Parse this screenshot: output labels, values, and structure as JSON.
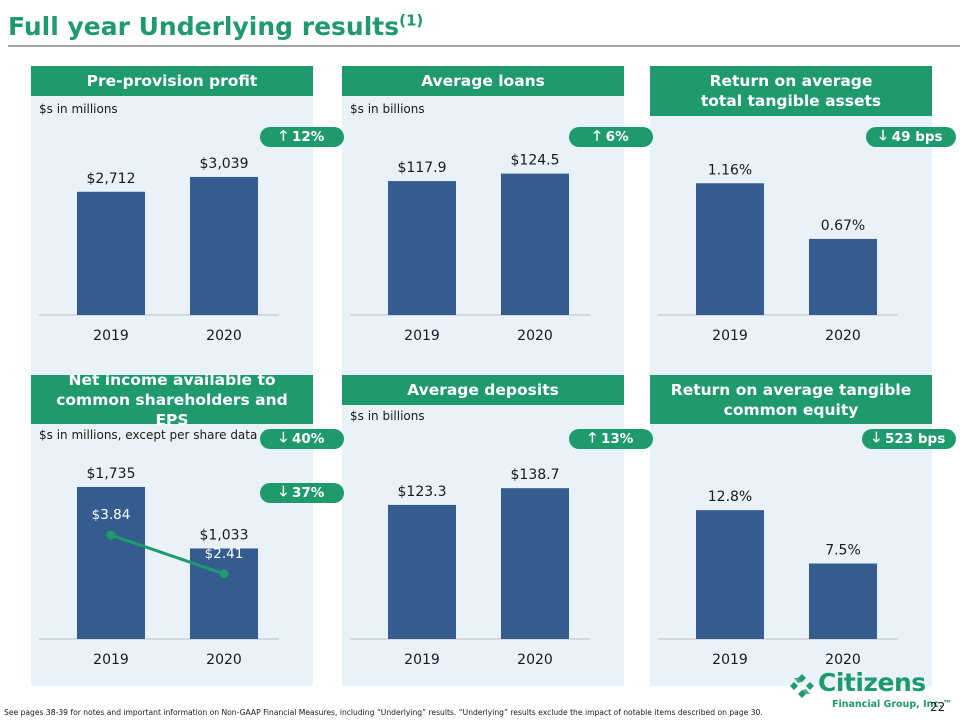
{
  "slide": {
    "title": "Full year Underlying results",
    "title_superscript": "(1)",
    "footnote": "See pages 38-39 for notes and important information on Non-GAAP Financial Measures, including “Underlying” results. “Underlying” results exclude the impact of notable items described on page 30.",
    "page_number": "22"
  },
  "logo": {
    "name": "Citizens",
    "tagline": "Financial Group, Inc.™"
  },
  "colors": {
    "brand_green": "#1f9a6d",
    "bar_blue": "#345c8f",
    "panel_bg": "#e8f2f8"
  },
  "panels": [
    {
      "header_lines": [
        "Pre-provision profit"
      ],
      "subtitle": "$s in millions",
      "badges": [
        {
          "arrow": "up",
          "arrow_glyph": "🡑",
          "text": "12%"
        }
      ]
    },
    {
      "header_lines": [
        "Average loans"
      ],
      "subtitle": "$s in billions",
      "badges": [
        {
          "arrow": "up",
          "arrow_glyph": "🡑",
          "text": "6%"
        }
      ]
    },
    {
      "header_lines": [
        "Return on average",
        "total tangible assets"
      ],
      "subtitle": "",
      "badges": [
        {
          "arrow": "down",
          "arrow_glyph": "🡓",
          "text": "49 bps"
        }
      ]
    },
    {
      "header_lines": [
        "Net income available to",
        "common shareholders and EPS"
      ],
      "subtitle": "$s in millions, except per share data",
      "badges": [
        {
          "arrow": "down",
          "arrow_glyph": "🡓",
          "text": "40%"
        },
        {
          "arrow": "down",
          "arrow_glyph": "🡓",
          "text": "37%"
        }
      ]
    },
    {
      "header_lines": [
        "Average deposits"
      ],
      "subtitle": "$s in billions",
      "badges": [
        {
          "arrow": "up",
          "arrow_glyph": "🡑",
          "text": "13%"
        }
      ]
    },
    {
      "header_lines": [
        "Return on average tangible",
        "common equity"
      ],
      "subtitle": "",
      "badges": [
        {
          "arrow": "down",
          "arrow_glyph": "🡓",
          "text": "523 bps"
        }
      ]
    }
  ],
  "chart_data": [
    {
      "type": "bar",
      "title": "Pre-provision profit",
      "ylabel": "$s in millions",
      "categories": [
        "2019",
        "2020"
      ],
      "values": [
        2712,
        3039
      ],
      "data_labels": [
        "$2,712",
        "$3,039"
      ],
      "ylim": [
        0,
        3500
      ],
      "grid": false
    },
    {
      "type": "bar",
      "title": "Average loans",
      "ylabel": "$s in billions",
      "categories": [
        "2019",
        "2020"
      ],
      "values": [
        117.9,
        124.5
      ],
      "data_labels": [
        "$117.9",
        "$124.5"
      ],
      "ylim": [
        0,
        140
      ],
      "grid": false
    },
    {
      "type": "bar",
      "title": "Return on average total tangible assets",
      "categories": [
        "2019",
        "2020"
      ],
      "values": [
        1.16,
        0.67
      ],
      "data_labels": [
        "1.16%",
        "0.67%"
      ],
      "ylim": [
        0,
        1.4
      ],
      "grid": false
    },
    {
      "type": "bar",
      "title": "Net income available to common shareholders and EPS",
      "ylabel": "$s in millions, except per share data",
      "categories": [
        "2019",
        "2020"
      ],
      "values": [
        1735,
        1033
      ],
      "data_labels": [
        "$1,735",
        "$1,033"
      ],
      "ylim": [
        0,
        2100
      ],
      "grid": false,
      "line_series": {
        "values": [
          3.84,
          2.41
        ],
        "data_labels": [
          "$3.84",
          "$2.41"
        ],
        "ylim": [
          0,
          6.8
        ]
      }
    },
    {
      "type": "bar",
      "title": "Average deposits",
      "ylabel": "$s in billions",
      "categories": [
        "2019",
        "2020"
      ],
      "values": [
        123.3,
        138.7
      ],
      "data_labels": [
        "$123.3",
        "$138.7"
      ],
      "ylim": [
        0,
        160
      ],
      "grid": false
    },
    {
      "type": "bar",
      "title": "Return on average tangible common equity",
      "categories": [
        "2019",
        "2020"
      ],
      "values": [
        12.8,
        7.5
      ],
      "data_labels": [
        "12.8%",
        "7.5%"
      ],
      "ylim": [
        0,
        15.5
      ],
      "grid": false
    }
  ]
}
